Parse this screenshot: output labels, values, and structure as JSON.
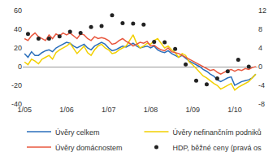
{
  "chart_data": {
    "type": "line",
    "categories": [
      "1/05",
      null,
      null,
      null,
      null,
      null,
      null,
      null,
      null,
      null,
      null,
      null,
      "1/06",
      null,
      null,
      null,
      null,
      null,
      null,
      null,
      null,
      null,
      null,
      null,
      "1/07",
      null,
      null,
      null,
      null,
      null,
      null,
      null,
      null,
      null,
      null,
      null,
      "1/08",
      null,
      null,
      null,
      null,
      null,
      null,
      null,
      null,
      null,
      null,
      null,
      "1/09",
      null,
      null,
      null,
      null,
      null,
      null,
      null,
      null,
      null,
      null,
      null,
      "1/10",
      null,
      null,
      null,
      null,
      null,
      null
    ],
    "series": [
      {
        "name": "Úvěry celkem",
        "color": "#2a6ebb",
        "type": "line",
        "values": [
          14,
          10,
          16,
          12,
          12,
          15,
          17,
          18,
          16,
          20,
          22,
          24,
          26,
          25,
          22,
          20,
          22,
          24,
          20,
          18,
          22,
          24,
          26,
          24,
          20,
          17,
          18,
          20,
          22,
          21,
          23,
          25,
          22,
          20,
          21,
          22,
          20,
          22,
          18,
          16,
          15,
          17,
          14,
          12,
          10,
          12,
          9,
          6,
          4,
          2,
          0,
          -3,
          -5,
          -8,
          -10,
          -14,
          -16,
          -14,
          -12,
          -11,
          -20,
          -18,
          -16,
          -15,
          -14,
          -12,
          -8
        ]
      },
      {
        "name": "Úvěry nefinančním podnikům",
        "color": "#f2d000",
        "type": "line",
        "values": [
          5,
          2,
          8,
          6,
          3,
          8,
          10,
          12,
          8,
          15,
          18,
          20,
          22,
          25,
          20,
          14,
          18,
          22,
          15,
          12,
          18,
          22,
          24,
          20,
          18,
          14,
          15,
          18,
          20,
          22,
          28,
          34,
          25,
          20,
          22,
          25,
          24,
          28,
          30,
          25,
          20,
          22,
          18,
          15,
          10,
          14,
          12,
          5,
          2,
          -2,
          -6,
          -10,
          -12,
          -15,
          -18,
          -20,
          -24,
          -22,
          -20,
          -18,
          -25,
          -22,
          -20,
          -18,
          -16,
          -12,
          -8
        ]
      },
      {
        "name": "Úvěry domácnostem",
        "color": "#e8573e",
        "type": "line",
        "values": [
          30,
          28,
          33,
          36,
          32,
          30,
          28,
          34,
          30,
          35,
          33,
          36,
          34,
          36,
          33,
          30,
          35,
          34,
          30,
          28,
          32,
          30,
          31,
          30,
          28,
          24,
          25,
          28,
          30,
          27,
          25,
          22,
          24,
          26,
          25,
          27,
          22,
          23,
          20,
          18,
          17,
          20,
          16,
          15,
          14,
          12,
          10,
          8,
          6,
          4,
          2,
          0,
          -2,
          -4,
          -3,
          -6,
          -8,
          -6,
          -4,
          -3,
          -5,
          -3,
          -4,
          -2,
          -3,
          -1,
          0
        ]
      },
      {
        "name": "HDP, běžné ceny (pravá osa)",
        "color": "#222222",
        "type": "scatter",
        "marker": "circle",
        "axis": "y2",
        "values": [
          null,
          7,
          null,
          null,
          6,
          null,
          null,
          6,
          null,
          null,
          6.5,
          null,
          null,
          7.5,
          null,
          null,
          7.2,
          null,
          null,
          8.5,
          null,
          null,
          8.7,
          null,
          null,
          11,
          null,
          null,
          9.3,
          null,
          null,
          9.2,
          null,
          null,
          9,
          null,
          null,
          5.3,
          null,
          null,
          5.2,
          null,
          null,
          3.8,
          null,
          null,
          0.5,
          null,
          null,
          -3,
          null,
          null,
          -3.8,
          null,
          null,
          -2.5,
          null,
          null,
          -1,
          null,
          null,
          1.5,
          null,
          null,
          0,
          null,
          null
        ]
      }
    ],
    "ylim": [
      -40,
      60
    ],
    "yticks": [
      -40,
      -20,
      0,
      20,
      40,
      60
    ],
    "y2lim": [
      -8,
      12
    ],
    "y2ticks": [
      -8,
      -4,
      0,
      4,
      8,
      12
    ],
    "grid": false,
    "legend": "bottom"
  }
}
